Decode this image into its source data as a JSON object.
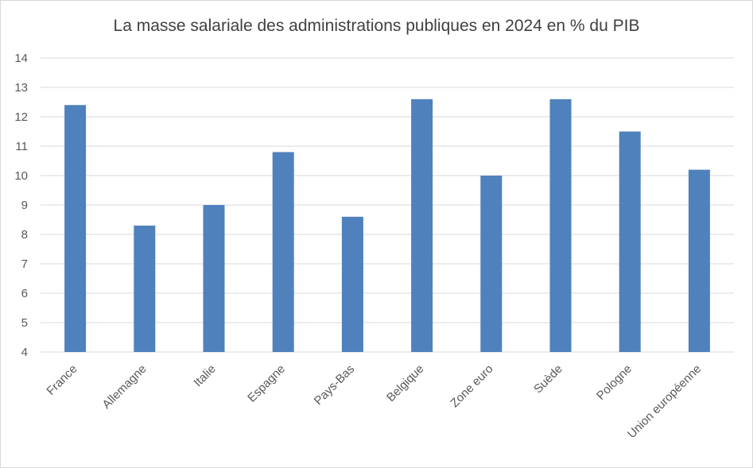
{
  "chart_data": {
    "type": "bar",
    "title": "La masse salariale des administrations publiques en 2024 en % du PIB",
    "xlabel": "",
    "ylabel": "",
    "categories": [
      "France",
      "Allemagne",
      "Italie",
      "Espagne",
      "Pays-Bas",
      "Belgique",
      "Zone euro",
      "Suède",
      "Pologne",
      "Union européenne"
    ],
    "values": [
      12.4,
      8.3,
      9.0,
      10.8,
      8.6,
      12.6,
      10.0,
      12.6,
      11.5,
      10.2
    ],
    "ylim": [
      4,
      14
    ],
    "yticks": [
      "4",
      "5",
      "6",
      "7",
      "8",
      "9",
      "10",
      "11",
      "12",
      "13",
      "14"
    ],
    "grid": true,
    "legend": "none",
    "bar_color": "#4f81bd",
    "grid_color": "#d9d9d9"
  }
}
